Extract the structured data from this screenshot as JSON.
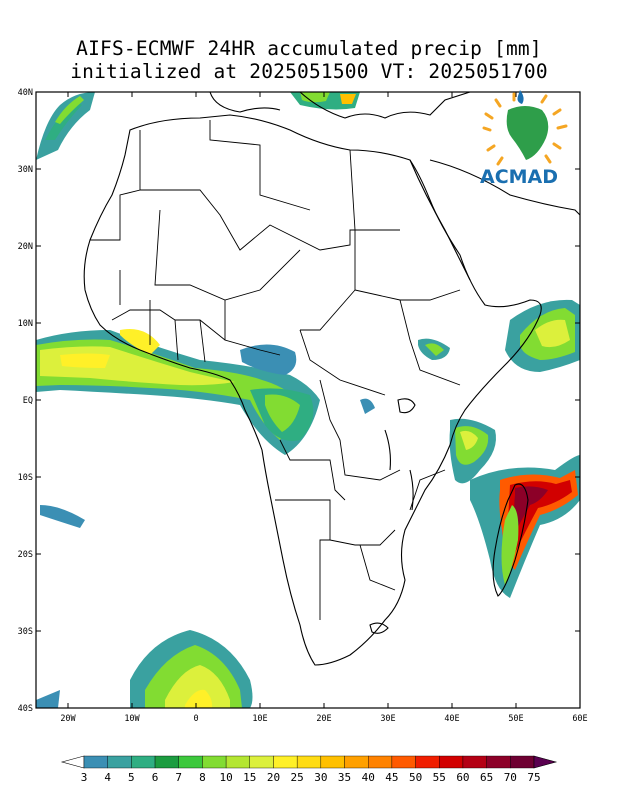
{
  "title": {
    "line1": "AIFS-ECMWF 24HR accumulated precip [mm]",
    "line2": "initialized at 2025051500 VT: 2025051700"
  },
  "logo": {
    "text": "ACMAD",
    "icon": "africa-globe-logo"
  },
  "axes": {
    "lat_labels": [
      "40N",
      "30N",
      "20N",
      "10N",
      "EQ",
      "10S",
      "20S",
      "30S",
      "40S"
    ],
    "lon_labels": [
      "20W",
      "10W",
      "0",
      "10E",
      "20E",
      "30E",
      "40E",
      "50E",
      "60E"
    ],
    "lat_values": [
      40,
      30,
      20,
      10,
      0,
      -10,
      -20,
      -30,
      -40
    ],
    "lon_values": [
      -20,
      -10,
      0,
      10,
      20,
      30,
      40,
      50,
      60
    ],
    "lon_range": [
      -25,
      60
    ],
    "lat_range": [
      -40,
      40
    ]
  },
  "colorbar": {
    "labels": [
      "3",
      "4",
      "5",
      "6",
      "7",
      "8",
      "10",
      "15",
      "20",
      "25",
      "30",
      "35",
      "40",
      "45",
      "50",
      "55",
      "60",
      "65",
      "70",
      "75"
    ],
    "colors": [
      "#ffffff",
      "#3b8fb4",
      "#3aa1a0",
      "#2fae82",
      "#1c9c40",
      "#3cc83c",
      "#82dc32",
      "#b4e632",
      "#dcf03c",
      "#fff028",
      "#ffdc14",
      "#ffc000",
      "#ffa000",
      "#ff8200",
      "#ff5a00",
      "#f01e00",
      "#d20000",
      "#b40014",
      "#8c0028",
      "#6e0032",
      "#5a0050"
    ]
  }
}
